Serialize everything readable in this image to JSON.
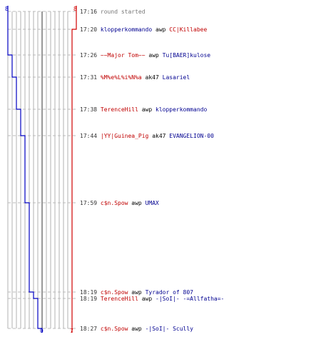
{
  "colors": {
    "team_blue": "#0000c0",
    "team_red": "#d00000",
    "grid": "#b0b0b0",
    "timestamp": "#333333"
  },
  "scores": {
    "blue_start": "8",
    "red_start": "8",
    "blue_end": "0",
    "red_end": "7"
  },
  "events": [
    {
      "time": "17:16",
      "text": "round started",
      "killer": "",
      "weapon": "",
      "victim": "",
      "killer_team": "",
      "victim_team": ""
    },
    {
      "time": "17:20",
      "text": "",
      "killer": "klopperkommando",
      "weapon": "awp",
      "victim": "CC|Killabee",
      "killer_team": "blue",
      "victim_team": "red"
    },
    {
      "time": "17:26",
      "text": "",
      "killer": "~~Major Tom~~",
      "weapon": "awp",
      "victim": "Tu[BAER]kulose",
      "killer_team": "red",
      "victim_team": "blue"
    },
    {
      "time": "17:31",
      "text": "",
      "killer": "%M%e%L%i%N%a",
      "weapon": "ak47",
      "victim": "Lasariel",
      "killer_team": "red",
      "victim_team": "blue"
    },
    {
      "time": "17:38",
      "text": "",
      "killer": "TerenceHill",
      "weapon": "awp",
      "victim": "klopperkommando",
      "killer_team": "red",
      "victim_team": "blue"
    },
    {
      "time": "17:44",
      "text": "",
      "killer": "|YY|Guinea_Pig",
      "weapon": "ak47",
      "victim": "EVANGELION-00",
      "killer_team": "red",
      "victim_team": "blue"
    },
    {
      "time": "17:59",
      "text": "",
      "killer": "c$n.Spow",
      "weapon": "awp",
      "victim": "UMAX",
      "killer_team": "red",
      "victim_team": "blue"
    },
    {
      "time": "18:19",
      "text": "",
      "killer": "c$n.Spow",
      "weapon": "awp",
      "victim": "Tyrador of 807",
      "killer_team": "red",
      "victim_team": "blue"
    },
    {
      "time": "18:19",
      "text": "",
      "killer": "TerenceHill",
      "weapon": "awp",
      "victim": "-|SoI|- -=Allfatha=-",
      "killer_team": "red",
      "victim_team": "blue"
    },
    {
      "time": "18:27",
      "text": "",
      "killer": "c$n.Spow",
      "weapon": "awp",
      "victim": "-|SoI|- Scully",
      "killer_team": "red",
      "victim_team": "blue"
    }
  ]
}
